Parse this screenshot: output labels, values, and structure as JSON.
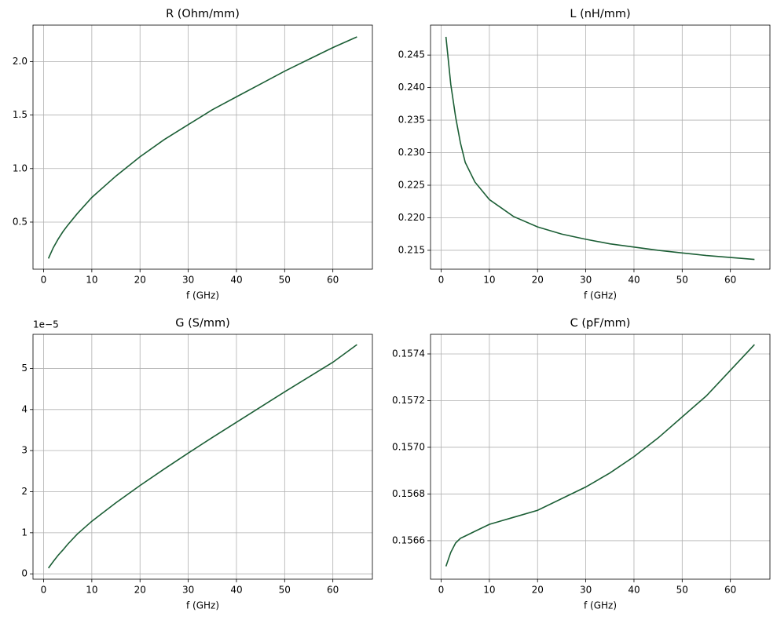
{
  "chart_data": [
    {
      "type": "line",
      "title": "R (Ohm/mm)",
      "x_label": "f (GHz)",
      "x": [
        1,
        2,
        3,
        4,
        5,
        7,
        10,
        15,
        20,
        25,
        30,
        35,
        40,
        45,
        50,
        55,
        60,
        65
      ],
      "values": [
        0.16,
        0.26,
        0.34,
        0.41,
        0.47,
        0.58,
        0.73,
        0.93,
        1.11,
        1.27,
        1.41,
        1.55,
        1.67,
        1.79,
        1.91,
        2.02,
        2.13,
        2.23
      ],
      "color": "#1b5e35",
      "grid": true,
      "xlim": [
        -2.2,
        68.2
      ],
      "xticks": [
        0,
        10,
        20,
        30,
        40,
        50,
        60
      ],
      "ylim": [
        0.06,
        2.34
      ],
      "yticks": [
        0.5,
        {
          "value": 1,
          "label": "1.0"
        },
        1.5,
        {
          "value": 2,
          "label": "2.0"
        }
      ]
    },
    {
      "type": "line",
      "title": "L (nH/mm)",
      "x_label": "f (GHz)",
      "x": [
        1,
        2,
        3,
        4,
        5,
        7,
        10,
        15,
        20,
        25,
        30,
        35,
        40,
        45,
        50,
        55,
        60,
        65
      ],
      "values": [
        0.2478,
        0.2405,
        0.2355,
        0.2315,
        0.2285,
        0.2255,
        0.2228,
        0.2202,
        0.2186,
        0.2175,
        0.2167,
        0.216,
        0.2155,
        0.215,
        0.2146,
        0.2142,
        0.2139,
        0.2136
      ],
      "color": "#1b5e35",
      "grid": true,
      "xlim": [
        -2.2,
        68.2
      ],
      "xticks": [
        0,
        10,
        20,
        30,
        40,
        50,
        60
      ],
      "ylim": [
        0.2121,
        0.2496
      ],
      "yticks": [
        0.215,
        {
          "value": 0.22,
          "label": "0.220"
        },
        0.225,
        {
          "value": 0.23,
          "label": "0.230"
        },
        0.235,
        {
          "value": 0.24,
          "label": "0.240"
        },
        0.245
      ]
    },
    {
      "type": "line",
      "title": "G (S/mm)",
      "x_label": "f (GHz)",
      "offset_label": "1e−5",
      "x": [
        1,
        2,
        3,
        4,
        5,
        7,
        10,
        15,
        20,
        25,
        30,
        35,
        40,
        45,
        50,
        55,
        60,
        65
      ],
      "values": [
        0.14,
        0.3,
        0.45,
        0.58,
        0.72,
        0.97,
        1.28,
        1.73,
        2.15,
        2.55,
        2.94,
        3.32,
        3.69,
        4.06,
        4.43,
        4.79,
        5.15,
        5.58
      ],
      "color": "#1b5e35",
      "grid": true,
      "xlim": [
        -2.2,
        68.2
      ],
      "xticks": [
        0,
        10,
        20,
        30,
        40,
        50,
        60
      ],
      "ylim": [
        -0.13,
        5.83
      ],
      "yticks": [
        0,
        1,
        2,
        3,
        4,
        5
      ]
    },
    {
      "type": "line",
      "title": "C (pF/mm)",
      "x_label": "f (GHz)",
      "x": [
        1,
        2,
        3,
        4,
        5,
        7,
        10,
        15,
        20,
        25,
        30,
        35,
        40,
        45,
        50,
        55,
        60,
        65
      ],
      "values": [
        0.15649,
        0.15655,
        0.15659,
        0.15661,
        0.15662,
        0.15664,
        0.15667,
        0.1567,
        0.15673,
        0.15678,
        0.15683,
        0.15689,
        0.15696,
        0.15704,
        0.15713,
        0.15722,
        0.15733,
        0.15744
      ],
      "color": "#1b5e35",
      "grid": true,
      "xlim": [
        -2.2,
        68.2
      ],
      "xticks": [
        0,
        10,
        20,
        30,
        40,
        50,
        60
      ],
      "ylim": [
        0.156435,
        0.157484
      ],
      "yticks": [
        0.1566,
        0.1568,
        {
          "value": 0.157,
          "label": "0.1570"
        },
        0.1572,
        0.1574
      ]
    }
  ]
}
